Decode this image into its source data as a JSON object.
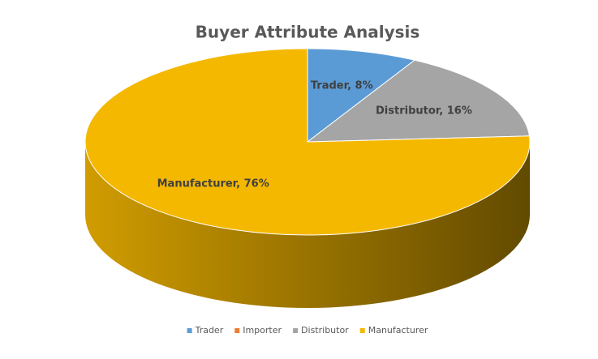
{
  "chart_data": {
    "type": "pie",
    "title": "Buyer Attribute Analysis",
    "categories": [
      "Trader",
      "Importer",
      "Distributor",
      "Manufacturer"
    ],
    "values": [
      8,
      0,
      16,
      76
    ],
    "value_labels": [
      "Trader, 8%",
      null,
      "Distributor, 16%",
      "Manufacturer, 76%"
    ],
    "colors": [
      "#5b9bd5",
      "#ed7d31",
      "#a5a5a5",
      "#f5b800"
    ],
    "legend": "bottom"
  }
}
